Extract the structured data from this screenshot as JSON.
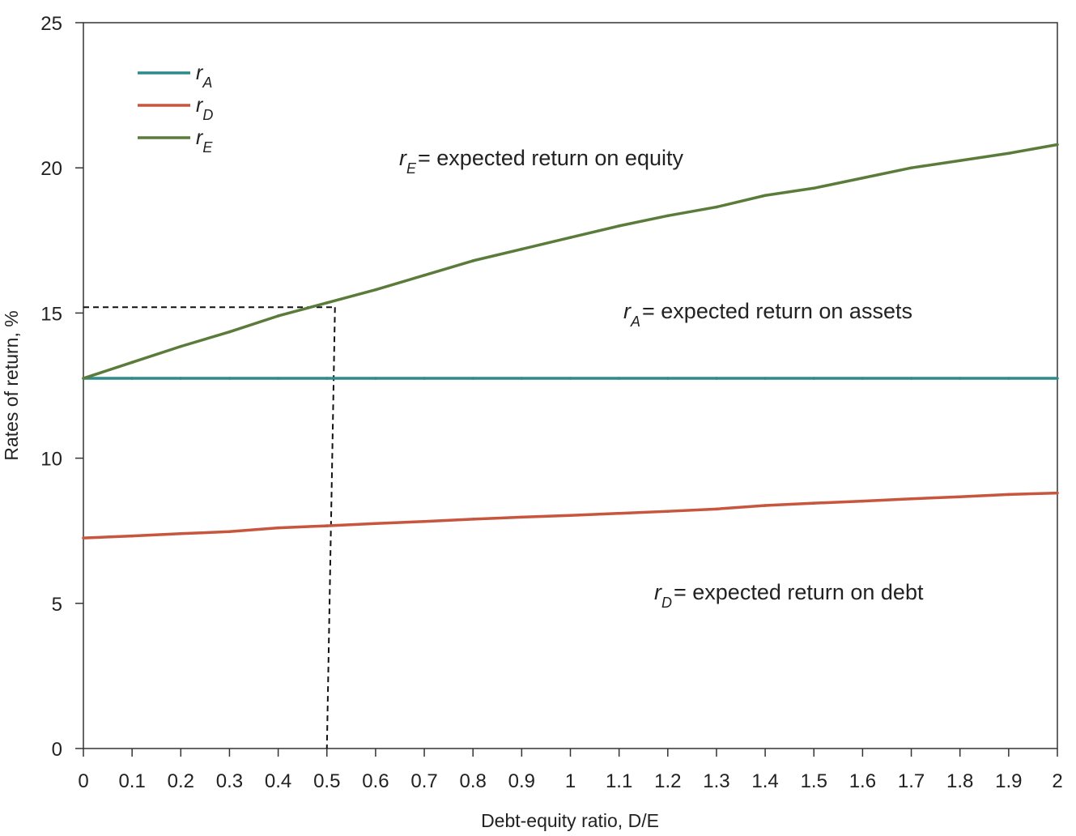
{
  "chart_data": {
    "type": "line",
    "xlabel": "Debt-equity ratio, D/E",
    "ylabel": "Rates of return, %",
    "xlim": [
      0,
      2
    ],
    "ylim": [
      0,
      25
    ],
    "x_ticks": [
      "0",
      "0.1",
      "0.2",
      "0.3",
      "0.4",
      "0.5",
      "0.6",
      "0.7",
      "0.8",
      "0.9",
      "1",
      "1.1",
      "1.2",
      "1.3",
      "1.4",
      "1.5",
      "1.6",
      "1.7",
      "1.8",
      "1.9",
      "2"
    ],
    "y_ticks": [
      "0",
      "5",
      "10",
      "15",
      "20",
      "25"
    ],
    "x": [
      0,
      0.1,
      0.2,
      0.3,
      0.4,
      0.5,
      0.6,
      0.7,
      0.8,
      0.9,
      1.0,
      1.1,
      1.2,
      1.3,
      1.4,
      1.5,
      1.6,
      1.7,
      1.8,
      1.9,
      2.0
    ],
    "series": [
      {
        "key": "rA",
        "legend_main": "r",
        "legend_sub": "A",
        "color": "#2e8b8b",
        "values": [
          12.75,
          12.75,
          12.75,
          12.75,
          12.75,
          12.75,
          12.75,
          12.75,
          12.75,
          12.75,
          12.75,
          12.75,
          12.75,
          12.75,
          12.75,
          12.75,
          12.75,
          12.75,
          12.75,
          12.75,
          12.75
        ]
      },
      {
        "key": "rD",
        "legend_main": "r",
        "legend_sub": "D",
        "color": "#c8553d",
        "values": [
          7.25,
          7.32,
          7.4,
          7.47,
          7.6,
          7.67,
          7.75,
          7.82,
          7.9,
          7.97,
          8.03,
          8.1,
          8.17,
          8.25,
          8.37,
          8.45,
          8.52,
          8.6,
          8.67,
          8.75,
          8.8
        ]
      },
      {
        "key": "rE",
        "legend_main": "r",
        "legend_sub": "E",
        "color": "#5b7b3a",
        "values": [
          12.75,
          13.3,
          13.85,
          14.35,
          14.9,
          15.35,
          15.8,
          16.3,
          16.8,
          17.2,
          17.6,
          18.0,
          18.35,
          18.65,
          19.05,
          19.3,
          19.65,
          20.0,
          20.25,
          20.5,
          20.8
        ]
      }
    ],
    "legend_position": "top-left",
    "grid": false,
    "reference": {
      "x": 0.5,
      "y": 15.2,
      "style": "dashed"
    },
    "annotations": [
      {
        "key": "rE",
        "main": "r",
        "sub": "E",
        "text": "= expected return on equity"
      },
      {
        "key": "rA",
        "main": "r",
        "sub": "A",
        "text": "= expected return on  assets"
      },
      {
        "key": "rD",
        "main": "r",
        "sub": "D",
        "text": "= expected return on debt"
      }
    ]
  }
}
